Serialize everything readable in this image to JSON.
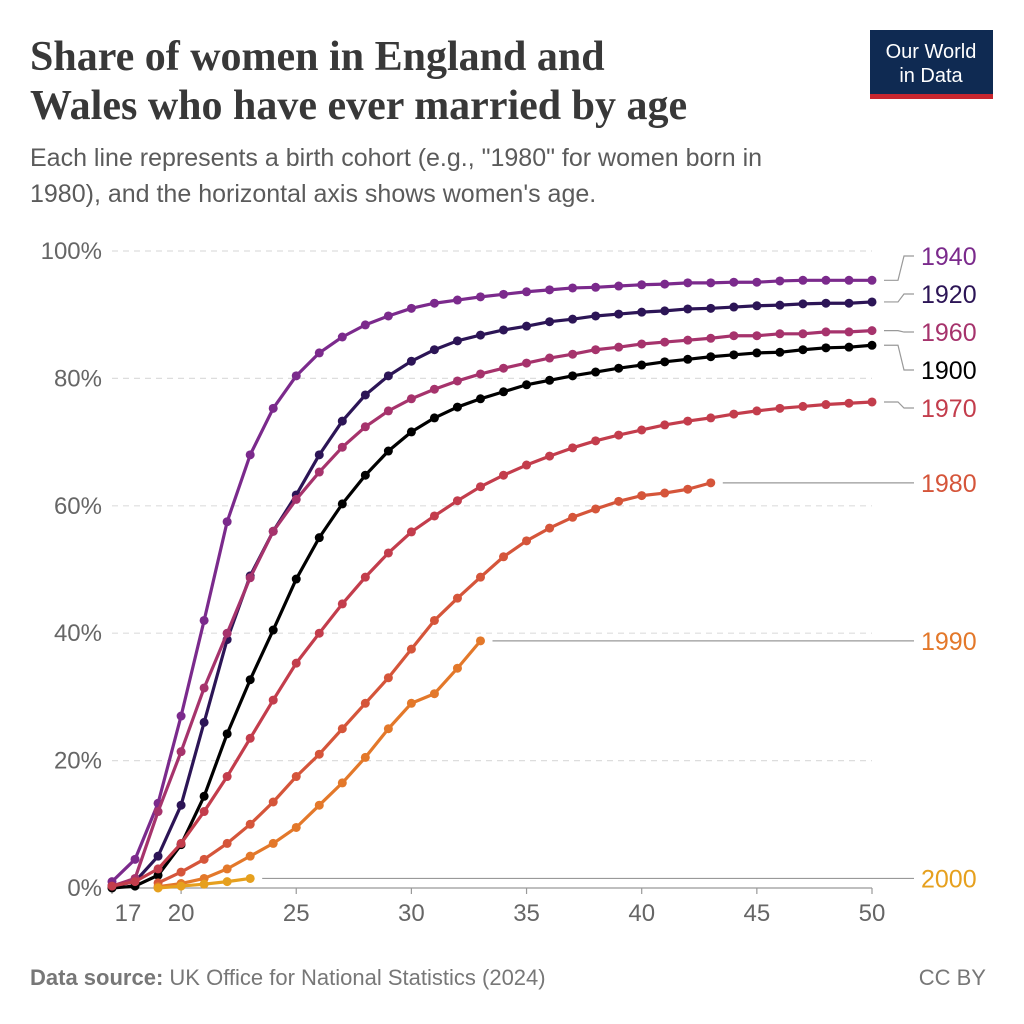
{
  "chart_data": {
    "type": "line",
    "title": [
      "Share of women in England and",
      "Wales who have ever married by age"
    ],
    "subtitle": [
      "Each line represents a birth cohort (e.g., \"1980\" for women born in",
      "1980), and the horizontal axis shows women's age."
    ],
    "logo": [
      "Our World",
      "in Data"
    ],
    "source_label": "Data source:",
    "source": "UK Office for National Statistics (2024)",
    "license": "CC BY",
    "x": [
      17,
      18,
      19,
      20,
      21,
      22,
      23,
      24,
      25,
      26,
      27,
      28,
      29,
      30,
      31,
      32,
      33,
      34,
      35,
      36,
      37,
      38,
      39,
      40,
      41,
      42,
      43,
      44,
      45,
      46,
      47,
      48,
      49,
      50
    ],
    "xlim": [
      17,
      50
    ],
    "xticks": [
      17,
      20,
      25,
      30,
      35,
      40,
      45,
      50
    ],
    "ylim": [
      0,
      100
    ],
    "yticks": [
      {
        "value": 0,
        "label": "0%"
      },
      {
        "value": 20,
        "label": "20%"
      },
      {
        "value": 40,
        "label": "40%"
      },
      {
        "value": 60,
        "label": "60%"
      },
      {
        "value": 80,
        "label": "80%"
      },
      {
        "value": 100,
        "label": "100%"
      }
    ],
    "grid": true,
    "series": [
      {
        "name": "1940",
        "color": "#7b2a8c",
        "values": [
          1,
          4.5,
          13.3,
          27,
          42,
          57.5,
          68,
          75.3,
          80.4,
          84,
          86.5,
          88.4,
          89.8,
          91,
          91.8,
          92.3,
          92.8,
          93.2,
          93.6,
          93.9,
          94.2,
          94.3,
          94.5,
          94.7,
          94.8,
          95,
          95,
          95.1,
          95.1,
          95.3,
          95.4,
          95.4,
          95.4,
          95.4
        ]
      },
      {
        "name": "1920",
        "color": "#2c1556",
        "values": [
          0.3,
          1,
          5,
          13,
          26,
          39,
          49,
          56,
          61.7,
          68,
          73.3,
          77.4,
          80.4,
          82.7,
          84.5,
          85.9,
          86.8,
          87.6,
          88.2,
          88.9,
          89.3,
          89.8,
          90.1,
          90.4,
          90.6,
          90.9,
          91,
          91.2,
          91.4,
          91.5,
          91.7,
          91.8,
          91.8,
          92
        ]
      },
      {
        "name": "1960",
        "color": "#a6336c",
        "values": [
          0.3,
          1.5,
          12,
          21.4,
          31.4,
          40,
          48.7,
          56,
          61,
          65.3,
          69.2,
          72.4,
          74.9,
          76.8,
          78.3,
          79.6,
          80.7,
          81.6,
          82.4,
          83.2,
          83.8,
          84.5,
          84.9,
          85.4,
          85.7,
          86,
          86.3,
          86.7,
          86.7,
          87,
          87,
          87.3,
          87.3,
          87.5
        ]
      },
      {
        "name": "1900",
        "color": "#000000",
        "values": [
          0,
          0.3,
          2,
          6.8,
          14.4,
          24.2,
          32.7,
          40.5,
          48.5,
          55,
          60.3,
          64.8,
          68.6,
          71.6,
          73.8,
          75.5,
          76.8,
          77.9,
          79,
          79.7,
          80.4,
          81,
          81.6,
          82.1,
          82.6,
          83,
          83.4,
          83.7,
          84,
          84.1,
          84.5,
          84.8,
          84.9,
          85.2
        ]
      },
      {
        "name": "1970",
        "color": "#c33d4c",
        "values": [
          0.3,
          1,
          3,
          7,
          12,
          17.5,
          23.5,
          29.5,
          35.3,
          40,
          44.6,
          48.8,
          52.6,
          55.9,
          58.4,
          60.8,
          63,
          64.8,
          66.4,
          67.8,
          69.1,
          70.2,
          71.1,
          71.9,
          72.7,
          73.3,
          73.8,
          74.4,
          74.9,
          75.3,
          75.6,
          75.9,
          76.1,
          76.3
        ]
      },
      {
        "name": "1980",
        "color": "#d5553a",
        "values": [
          null,
          null,
          0.8,
          2.5,
          4.5,
          7,
          10,
          13.5,
          17.5,
          21,
          25,
          29,
          33,
          37.5,
          42,
          45.5,
          48.8,
          52,
          54.5,
          56.5,
          58.2,
          59.5,
          60.7,
          61.6,
          62,
          62.6,
          63.6,
          null,
          null,
          null,
          null,
          null,
          null,
          null
        ]
      },
      {
        "name": "1990",
        "color": "#e3782a",
        "values": [
          null,
          null,
          0.2,
          0.7,
          1.5,
          3,
          5,
          7,
          9.5,
          13,
          16.5,
          20.5,
          25,
          29,
          30.5,
          34.5,
          38.8,
          null,
          null,
          null,
          null,
          null,
          null,
          null,
          null,
          null,
          null,
          null,
          null,
          null,
          null,
          null,
          null,
          null
        ]
      },
      {
        "name": "2000",
        "color": "#e6a01e",
        "values": [
          null,
          null,
          0,
          0.3,
          0.6,
          1,
          1.5,
          null,
          null,
          null,
          null,
          null,
          null,
          null,
          null,
          null,
          null,
          null,
          null,
          null,
          null,
          null,
          null,
          null,
          null,
          null,
          null,
          null,
          null,
          null,
          null,
          null,
          null,
          null
        ]
      }
    ]
  }
}
